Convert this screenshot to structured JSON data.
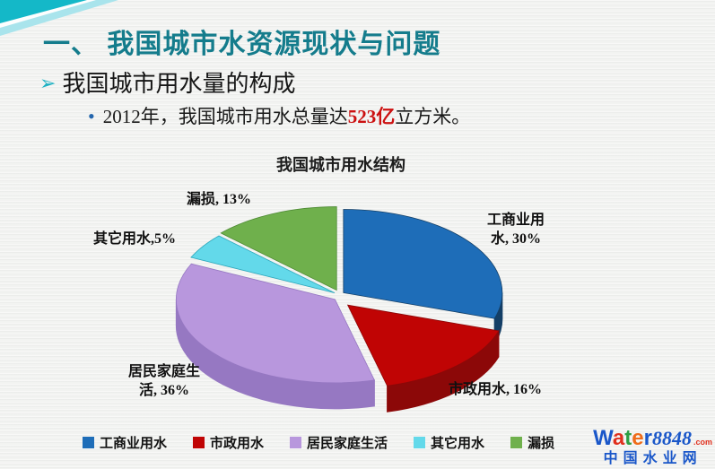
{
  "slide": {
    "title": "一、 我国城市水资源现状与问题",
    "title_color": "#147c8c",
    "accent_teal": "#14b8c8",
    "accent_teal_light": "#a9e4ec",
    "bullet": "我国城市用水量的构成",
    "bullet_arrow_color": "#1db0c2",
    "sub_bullet_prefix": "2012年，我国城市用水总量达",
    "sub_bullet_highlight": "523亿",
    "sub_bullet_suffix": "立方米。",
    "highlight_color": "#cc1111",
    "sub_dot_color": "#2466ad"
  },
  "chart_data": {
    "type": "pie",
    "style": "3d-exploded",
    "title": "我国城市用水结构",
    "categories": [
      "工商业用水",
      "市政用水",
      "居民家庭生活",
      "其它用水",
      "漏损"
    ],
    "values": [
      30,
      16,
      36,
      5,
      13
    ],
    "unit": "%",
    "start_angle_deg": 0,
    "direction": "clockwise",
    "colors": [
      "#1e6db8",
      "#c00404",
      "#b897dd",
      "#63d9ea",
      "#6fb04c"
    ],
    "side_colors": [
      "#143f66",
      "#8c0808",
      "#9678c2",
      "#2fa8bc",
      "#4e8b34"
    ],
    "labels": [
      "工商业用\n水, 30%",
      "市政用水, 16%",
      "居民家庭生\n活, 36%",
      "其它用水,5%",
      "漏损, 13%"
    ],
    "legend": [
      "工商业用水",
      "市政用水",
      "居民家庭生活",
      "其它用水",
      "漏损"
    ],
    "legend_position": "bottom"
  },
  "logo": {
    "brand_letters": [
      [
        "W",
        "#1a57c9"
      ],
      [
        "a",
        "#e0301e"
      ],
      [
        "t",
        "#2f9e44"
      ],
      [
        "e",
        "#ef6c1a"
      ],
      [
        "r",
        "#1a57c9"
      ]
    ],
    "brand_number": "8848",
    "number_color": "#1a57c9",
    "brand_domain": ".com",
    "domain_color": "#e0301e",
    "tagline": "中国水业网",
    "tagline_color": "#1a57c9"
  }
}
